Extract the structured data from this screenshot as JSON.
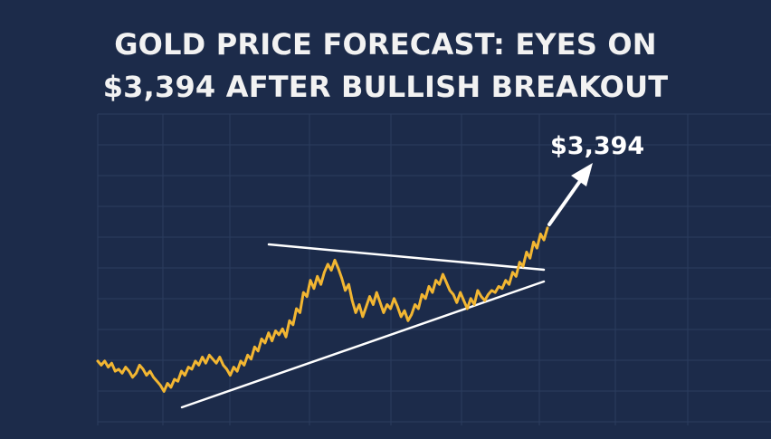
{
  "headline": {
    "line1": "GOLD PRICE FORECAST: EYES ON",
    "line2": "$3,394 AFTER BULLISH BREAKOUT"
  },
  "chart_data": {
    "type": "line",
    "title": "GOLD PRICE FORECAST: EYES ON $3,394 AFTER BULLISH BREAKOUT",
    "xlabel": "",
    "ylabel": "",
    "grid": true,
    "axes_labels_shown": false,
    "series": [
      {
        "color": "#f2b632",
        "values": [
          0.22,
          0.2,
          0.22,
          0.19,
          0.21,
          0.17,
          0.18,
          0.16,
          0.19,
          0.17,
          0.14,
          0.16,
          0.2,
          0.18,
          0.15,
          0.17,
          0.14,
          0.12,
          0.1,
          0.07,
          0.11,
          0.09,
          0.13,
          0.12,
          0.17,
          0.15,
          0.19,
          0.18,
          0.22,
          0.2,
          0.24,
          0.21,
          0.25,
          0.23,
          0.21,
          0.24,
          0.2,
          0.18,
          0.15,
          0.19,
          0.17,
          0.22,
          0.2,
          0.25,
          0.23,
          0.29,
          0.27,
          0.33,
          0.31,
          0.36,
          0.32,
          0.37,
          0.35,
          0.38,
          0.34,
          0.42,
          0.4,
          0.48,
          0.46,
          0.56,
          0.54,
          0.62,
          0.58,
          0.64,
          0.6,
          0.66,
          0.7,
          0.67,
          0.72,
          0.68,
          0.63,
          0.57,
          0.6,
          0.52,
          0.46,
          0.5,
          0.44,
          0.49,
          0.54,
          0.5,
          0.56,
          0.51,
          0.46,
          0.5,
          0.48,
          0.53,
          0.49,
          0.44,
          0.47,
          0.42,
          0.45,
          0.5,
          0.48,
          0.55,
          0.53,
          0.59,
          0.56,
          0.62,
          0.6,
          0.65,
          0.61,
          0.57,
          0.55,
          0.51,
          0.56,
          0.52,
          0.48,
          0.53,
          0.5,
          0.57,
          0.54,
          0.52,
          0.55,
          0.57,
          0.56,
          0.59,
          0.58,
          0.62,
          0.6,
          0.66,
          0.64,
          0.71,
          0.69,
          0.76,
          0.73,
          0.81,
          0.78,
          0.85,
          0.82,
          0.88
        ]
      }
    ],
    "trendlines": [
      {
        "name": "resistance",
        "color": "#ffffff"
      },
      {
        "name": "support",
        "color": "#ffffff"
      }
    ],
    "annotations": [
      {
        "text": "$3,394",
        "type": "arrow-target"
      }
    ]
  },
  "colors": {
    "background": "#1c2b4a",
    "grid": "#2b3d5e",
    "price_line": "#f2b632",
    "trendline": "#ffffff",
    "headline_text": "#f2f2f2"
  }
}
